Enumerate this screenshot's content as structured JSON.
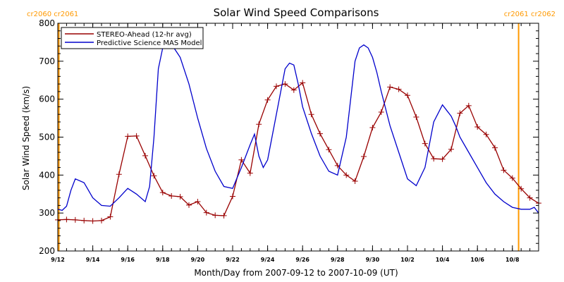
{
  "colors": {
    "stereo": "#990000",
    "model": "#0000cc",
    "rotation_marker": "#ff9900",
    "axis": "#000000",
    "background": "#ffffff"
  },
  "rotation_labels": {
    "left": "cr2060 cr2061",
    "right": "cr2061 cr2062"
  },
  "chart_data": {
    "type": "line",
    "title": "Solar Wind Speed Comparisons",
    "xlabel": "Month/Day from 2007-09-12 to 2007-10-09 (UT)",
    "ylabel": "Solar Wind Speed (km/s)",
    "xlim": [
      "2007-09-12",
      "2007-10-09"
    ],
    "ylim": [
      200,
      800
    ],
    "grid": false,
    "legend_position": "top-left",
    "x_ticks": [
      "9/12",
      "9/14",
      "9/16",
      "9/18",
      "9/20",
      "9/22",
      "9/24",
      "9/26",
      "9/28",
      "9/30",
      "10/2",
      "10/4",
      "10/6",
      "10/8"
    ],
    "y_ticks": [
      200,
      300,
      400,
      500,
      600,
      700,
      800
    ],
    "rotation_boundaries": [
      "2007-09-12",
      "2007-10-09"
    ],
    "series": [
      {
        "name": "STEREO-Ahead (12-hr avg)",
        "marker": "plus",
        "x": [
          "2007-09-12T00:00",
          "2007-09-12T12:00",
          "2007-09-13T00:00",
          "2007-09-13T12:00",
          "2007-09-14T00:00",
          "2007-09-14T12:00",
          "2007-09-15T00:00",
          "2007-09-15T12:00",
          "2007-09-16T00:00",
          "2007-09-16T12:00",
          "2007-09-17T00:00",
          "2007-09-17T12:00",
          "2007-09-18T00:00",
          "2007-09-18T12:00",
          "2007-09-19T00:00",
          "2007-09-19T12:00",
          "2007-09-20T00:00",
          "2007-09-20T12:00",
          "2007-09-21T00:00",
          "2007-09-21T12:00",
          "2007-09-22T00:00",
          "2007-09-22T12:00",
          "2007-09-23T00:00",
          "2007-09-23T12:00",
          "2007-09-24T00:00",
          "2007-09-24T12:00",
          "2007-09-25T00:00",
          "2007-09-25T12:00",
          "2007-09-26T00:00",
          "2007-09-26T12:00",
          "2007-09-27T00:00",
          "2007-09-27T12:00",
          "2007-09-28T00:00",
          "2007-09-28T12:00",
          "2007-09-29T00:00",
          "2007-09-29T12:00",
          "2007-09-30T00:00",
          "2007-09-30T12:00",
          "2007-10-01T00:00",
          "2007-10-01T12:00",
          "2007-10-02T00:00",
          "2007-10-02T12:00",
          "2007-10-03T00:00",
          "2007-10-03T12:00",
          "2007-10-04T00:00",
          "2007-10-04T12:00",
          "2007-10-05T00:00",
          "2007-10-05T12:00",
          "2007-10-06T00:00",
          "2007-10-06T12:00",
          "2007-10-07T00:00",
          "2007-10-07T12:00",
          "2007-10-08T00:00",
          "2007-10-08T12:00",
          "2007-10-09T00:00",
          "2007-10-09T12:00"
        ],
        "y": [
          282,
          283,
          282,
          280,
          279,
          280,
          290,
          402,
          502,
          503,
          451,
          398,
          354,
          345,
          343,
          321,
          330,
          301,
          294,
          293,
          344,
          440,
          405,
          534,
          598,
          634,
          640,
          624,
          643,
          560,
          509,
          467,
          425,
          400,
          384,
          449,
          525,
          566,
          632,
          626,
          610,
          553,
          483,
          443,
          442,
          468,
          563,
          583,
          527,
          507,
          472,
          413,
          392,
          364,
          340,
          326
        ]
      },
      {
        "name": "Predictive Science MAS Model",
        "marker": "none",
        "x": [
          "2007-09-12T00:00",
          "2007-09-12T06:00",
          "2007-09-12T12:00",
          "2007-09-12T18:00",
          "2007-09-13T00:00",
          "2007-09-13T12:00",
          "2007-09-14T00:00",
          "2007-09-14T12:00",
          "2007-09-15T00:00",
          "2007-09-15T12:00",
          "2007-09-16T00:00",
          "2007-09-16T12:00",
          "2007-09-17T00:00",
          "2007-09-17T06:00",
          "2007-09-17T12:00",
          "2007-09-17T18:00",
          "2007-09-18T00:00",
          "2007-09-18T06:00",
          "2007-09-18T12:00",
          "2007-09-19T00:00",
          "2007-09-19T12:00",
          "2007-09-20T00:00",
          "2007-09-20T12:00",
          "2007-09-21T00:00",
          "2007-09-21T12:00",
          "2007-09-22T00:00",
          "2007-09-22T12:00",
          "2007-09-23T00:00",
          "2007-09-23T06:00",
          "2007-09-23T12:00",
          "2007-09-23T18:00",
          "2007-09-24T00:00",
          "2007-09-24T12:00",
          "2007-09-25T00:00",
          "2007-09-25T06:00",
          "2007-09-25T12:00",
          "2007-09-25T18:00",
          "2007-09-26T00:00",
          "2007-09-26T12:00",
          "2007-09-27T00:00",
          "2007-09-27T12:00",
          "2007-09-28T00:00",
          "2007-09-28T12:00",
          "2007-09-29T00:00",
          "2007-09-29T06:00",
          "2007-09-29T12:00",
          "2007-09-29T18:00",
          "2007-09-30T00:00",
          "2007-09-30T06:00",
          "2007-09-30T12:00",
          "2007-10-01T00:00",
          "2007-10-01T12:00",
          "2007-10-02T00:00",
          "2007-10-02T12:00",
          "2007-10-03T00:00",
          "2007-10-03T12:00",
          "2007-10-04T00:00",
          "2007-10-04T06:00",
          "2007-10-04T12:00",
          "2007-10-04T18:00",
          "2007-10-05T00:00",
          "2007-10-05T12:00",
          "2007-10-06T00:00",
          "2007-10-06T12:00",
          "2007-10-07T00:00",
          "2007-10-07T12:00",
          "2007-10-08T00:00",
          "2007-10-08T12:00",
          "2007-10-09T00:00",
          "2007-10-09T06:00",
          "2007-10-09T12:00"
        ],
        "y": [
          310,
          307,
          318,
          360,
          390,
          380,
          340,
          320,
          318,
          340,
          365,
          350,
          330,
          370,
          500,
          680,
          735,
          748,
          745,
          710,
          640,
          550,
          470,
          410,
          370,
          365,
          420,
          480,
          508,
          450,
          420,
          440,
          560,
          680,
          695,
          690,
          640,
          580,
          510,
          450,
          410,
          400,
          500,
          700,
          735,
          743,
          735,
          710,
          670,
          620,
          530,
          460,
          390,
          372,
          420,
          540,
          585,
          570,
          555,
          530,
          500,
          460,
          420,
          380,
          350,
          330,
          315,
          310,
          310,
          315,
          300
        ]
      }
    ]
  }
}
